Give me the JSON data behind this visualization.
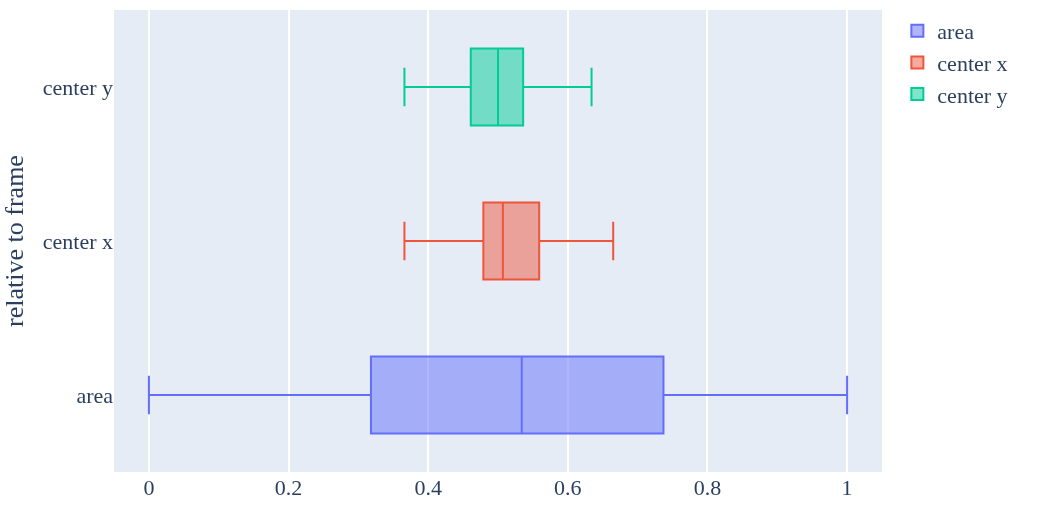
{
  "chart_data": {
    "type": "box",
    "orientation": "horizontal",
    "ylabel": "relative to frame",
    "categories": [
      "center y",
      "center x",
      "area"
    ],
    "xlim": [
      -0.05,
      1.05
    ],
    "xticks": [
      0,
      0.2,
      0.4,
      0.6,
      0.8,
      1
    ],
    "grid": "x",
    "legend": "top right",
    "series": [
      {
        "name": "area",
        "color": "#636efa",
        "boxes": [
          null,
          null,
          {
            "low": 0,
            "q1": 0.318,
            "median": 0.534,
            "q3": 0.737,
            "high": 1
          }
        ]
      },
      {
        "name": "center x",
        "color": "#ef553b",
        "boxes": [
          null,
          {
            "low": 0.366,
            "q1": 0.479,
            "median": 0.507,
            "q3": 0.559,
            "high": 0.665
          },
          null
        ]
      },
      {
        "name": "center y",
        "color": "#00cc96",
        "boxes": [
          {
            "low": 0.366,
            "q1": 0.461,
            "median": 0.5,
            "q3": 0.536,
            "high": 0.634
          },
          null,
          null
        ]
      }
    ]
  }
}
